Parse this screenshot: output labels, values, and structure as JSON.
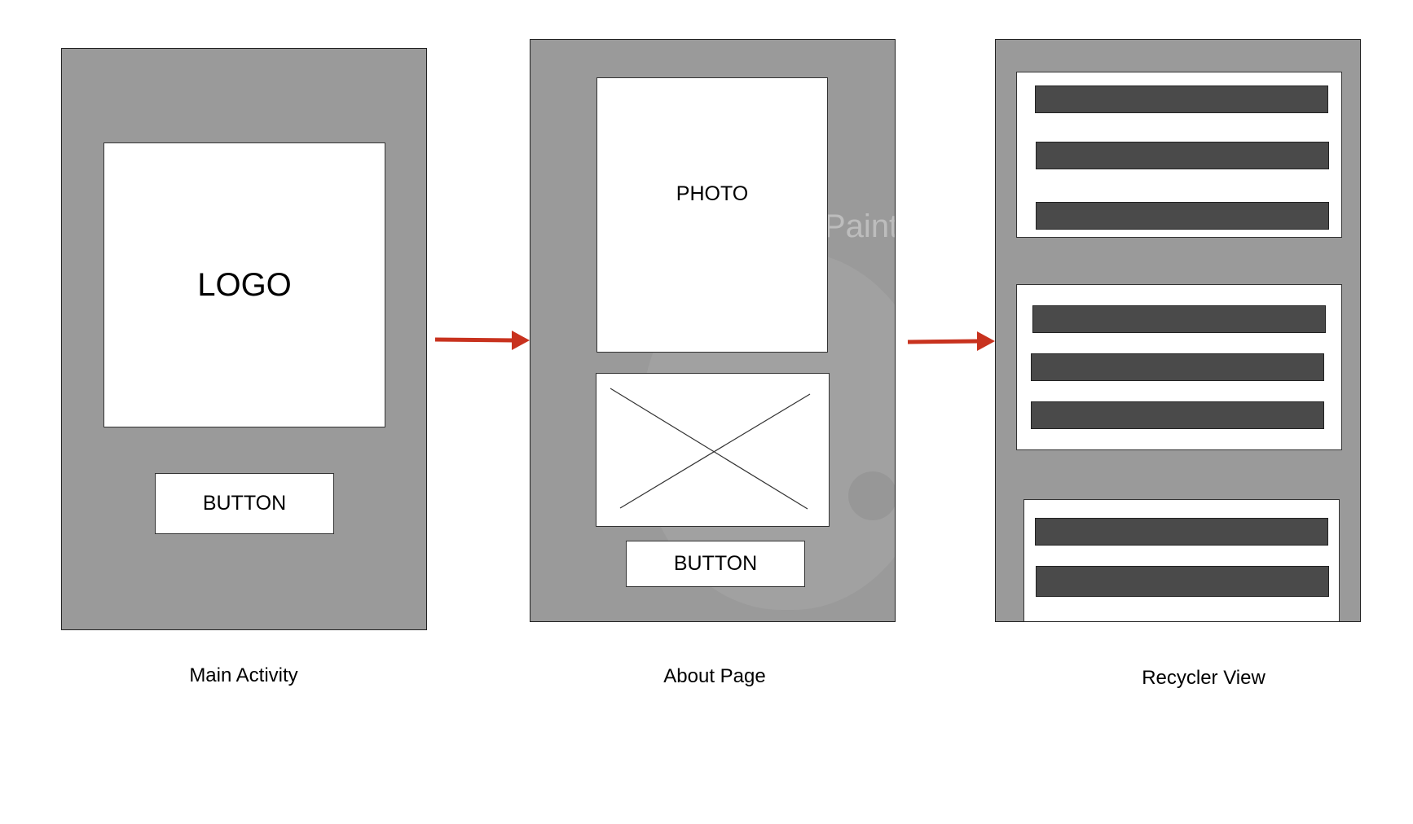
{
  "screens": {
    "main_activity": {
      "logo_text": "LOGO",
      "button_label": "BUTTON",
      "caption": "Main Activity"
    },
    "about_page": {
      "photo_text": "PHOTO",
      "button_label": "BUTTON",
      "caption": "About Page",
      "watermark_text": "Paint"
    },
    "recycler_view": {
      "caption": "Recycler View"
    }
  },
  "colors": {
    "screen_bg": "#9a9a9a",
    "card_bg": "#ffffff",
    "bar": "#4a4a4a",
    "arrow": "#c8321e"
  }
}
